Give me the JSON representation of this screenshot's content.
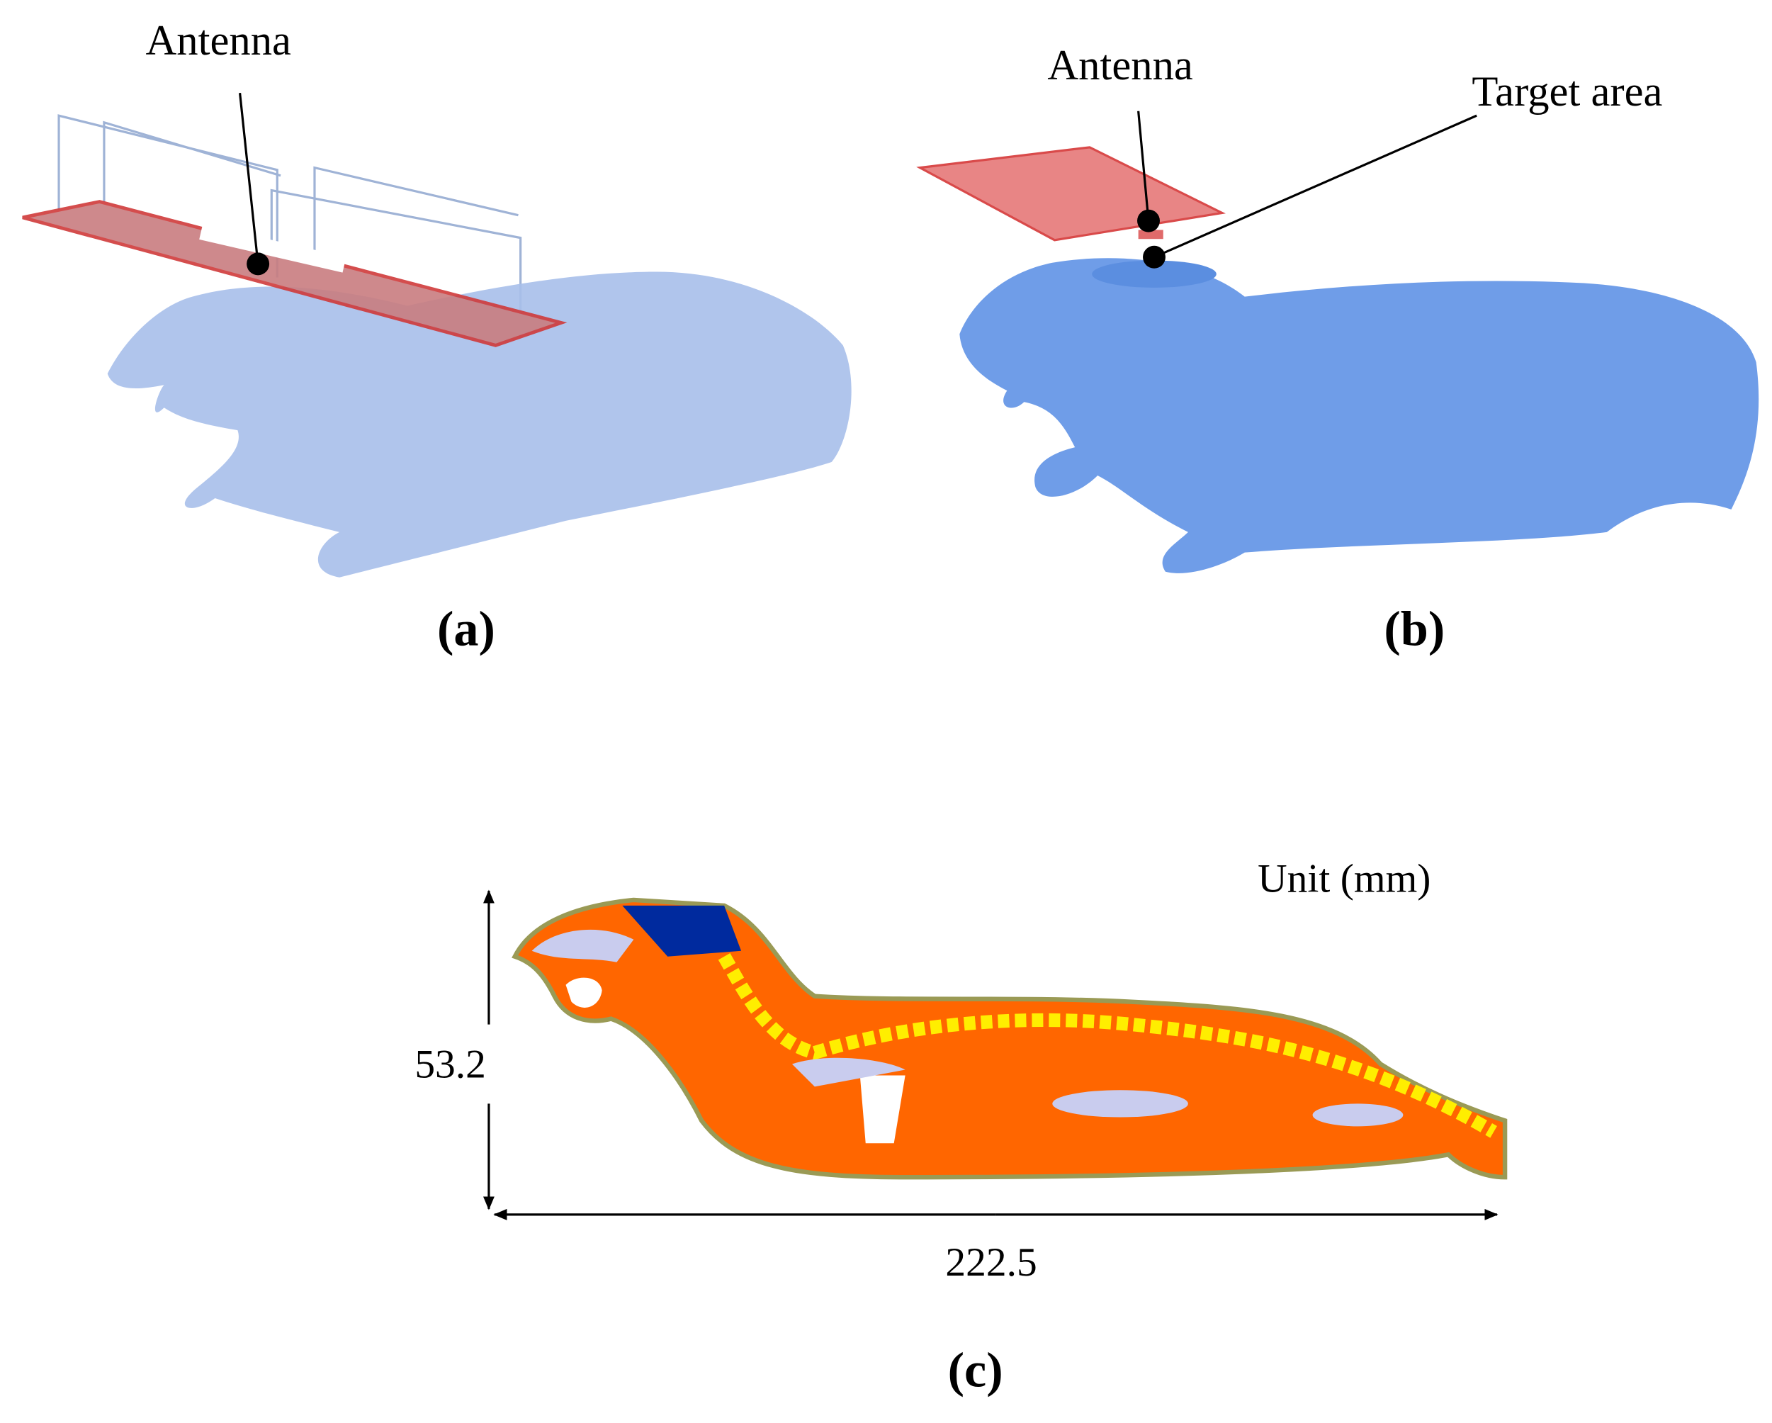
{
  "panels": [
    {
      "label": "(a)",
      "callouts": [
        "Antenna"
      ]
    },
    {
      "label": "(b)",
      "callouts": [
        "Antenna",
        "Target area"
      ]
    },
    {
      "label": "(c)",
      "unit": "Unit (mm)",
      "height": "53.2",
      "width": "222.5"
    }
  ]
}
